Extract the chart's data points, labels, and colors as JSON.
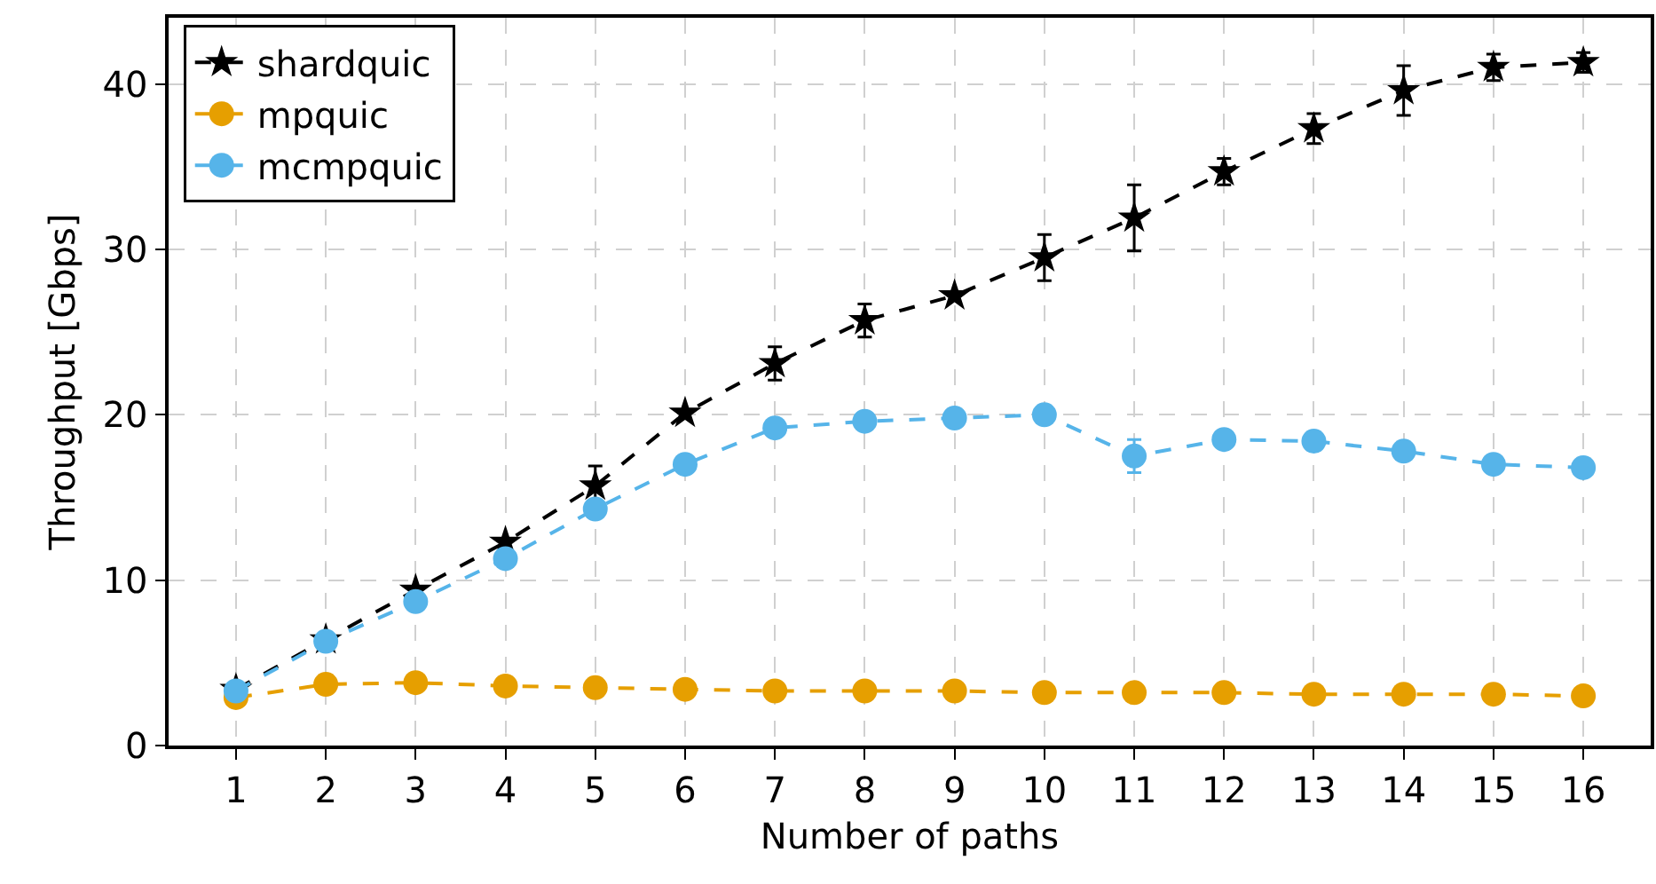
{
  "chart_data": {
    "type": "line",
    "xlabel": "Number of paths",
    "ylabel": "Throughput [Gbps]",
    "x": [
      1,
      2,
      3,
      4,
      5,
      6,
      7,
      8,
      9,
      10,
      11,
      12,
      13,
      14,
      15,
      16
    ],
    "xlim": [
      0.25,
      16.75
    ],
    "xticks": [
      1,
      2,
      3,
      4,
      5,
      6,
      7,
      8,
      9,
      10,
      11,
      12,
      13,
      14,
      15,
      16
    ],
    "ylim": [
      0,
      44
    ],
    "yticks": [
      0,
      10,
      20,
      30,
      40
    ],
    "grid": true,
    "legend": "top left",
    "line_style": "dashed",
    "series": [
      {
        "name": "shardquic",
        "color": "#000000",
        "marker": "star",
        "values": [
          3.4,
          6.4,
          9.4,
          12.3,
          15.7,
          20.1,
          23.1,
          25.7,
          27.2,
          29.5,
          31.9,
          34.7,
          37.3,
          39.6,
          41.0,
          41.3
        ],
        "errors": [
          null,
          null,
          null,
          null,
          1.2,
          null,
          1.0,
          1.0,
          null,
          1.4,
          2.0,
          0.8,
          0.9,
          1.5,
          0.8,
          0.6
        ]
      },
      {
        "name": "mpquic",
        "color": "#e69f00",
        "marker": "circle",
        "values": [
          2.9,
          3.7,
          3.8,
          3.6,
          3.5,
          3.4,
          3.3,
          3.3,
          3.3,
          3.2,
          3.2,
          3.2,
          3.1,
          3.1,
          3.1,
          3.0
        ]
      },
      {
        "name": "mcmpquic",
        "color": "#56b4e9",
        "marker": "circle",
        "values": [
          3.3,
          6.3,
          8.7,
          11.3,
          14.3,
          17.0,
          19.2,
          19.6,
          19.8,
          20.0,
          17.5,
          18.5,
          18.4,
          17.8,
          17.0,
          16.8
        ],
        "errors": [
          null,
          null,
          null,
          null,
          null,
          null,
          null,
          null,
          null,
          null,
          1.0,
          null,
          null,
          null,
          null,
          null
        ]
      }
    ]
  }
}
